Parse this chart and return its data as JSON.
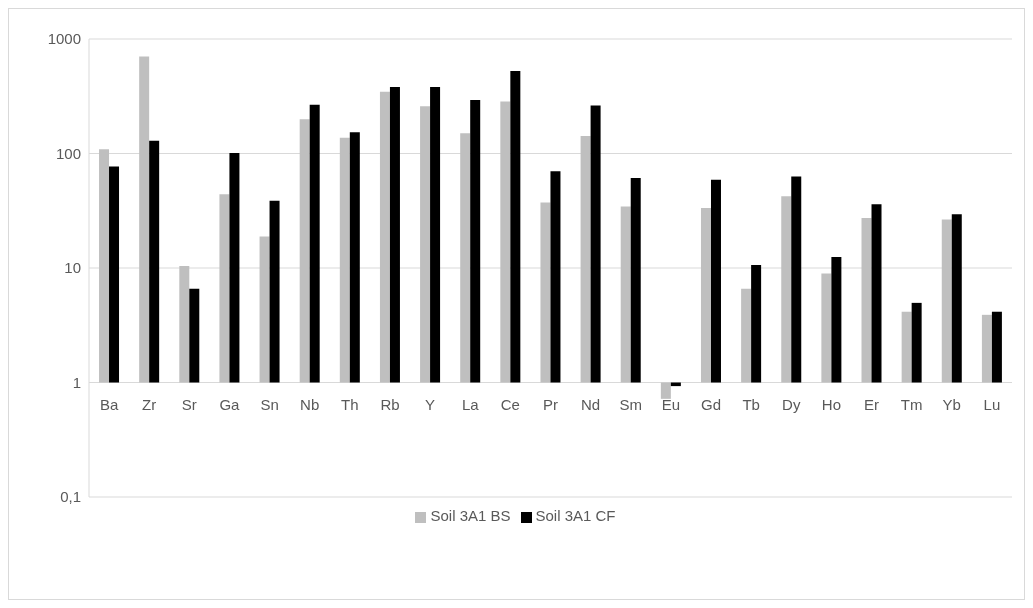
{
  "chart_data": {
    "type": "bar",
    "categories": [
      "Ba",
      "Zr",
      "Sr",
      "Ga",
      "Sn",
      "Nb",
      "Th",
      "Rb",
      "Y",
      "La",
      "Ce",
      "Pr",
      "Nd",
      "Sm",
      "Eu",
      "Gd",
      "Tb",
      "Dy",
      "Ho",
      "Er",
      "Tm",
      "Yb",
      "Lu"
    ],
    "series": [
      {
        "name": "Soil 3A1 BS",
        "color": "#bfbfbf",
        "values": [
          108,
          702,
          9.4,
          43,
          17.8,
          198,
          136,
          346,
          258,
          149,
          284,
          36.4,
          141,
          33.4,
          -0.28,
          32.5,
          5.6,
          41.4,
          7.95,
          26.4,
          3.15,
          25.5,
          2.9
        ],
        "base": [
          1,
          1,
          1,
          1,
          1,
          1,
          1,
          1,
          1,
          1,
          1,
          1,
          1,
          1,
          1,
          1,
          1,
          1,
          1,
          1,
          1,
          1,
          1
        ]
      },
      {
        "name": "Soil 3A1 CF",
        "color": "#000000",
        "values": [
          76,
          128,
          5.6,
          100,
          37.6,
          265,
          152,
          379,
          379,
          292,
          524,
          69,
          262,
          60,
          -0.07,
          58,
          9.6,
          62,
          11.5,
          35,
          3.96,
          28.5,
          3.15
        ],
        "base": [
          1,
          1,
          1,
          1,
          1,
          1,
          1,
          1,
          1,
          1,
          1,
          1,
          1,
          1,
          1,
          1,
          1,
          1,
          1,
          1,
          1,
          1,
          1
        ]
      }
    ],
    "log": "y",
    "ylim": [
      0.1,
      1000
    ],
    "yticks": [
      {
        "value": 0.1,
        "label": "0,1"
      },
      1,
      10,
      100,
      1000
    ],
    "grid": "y",
    "legend": "bottom"
  }
}
